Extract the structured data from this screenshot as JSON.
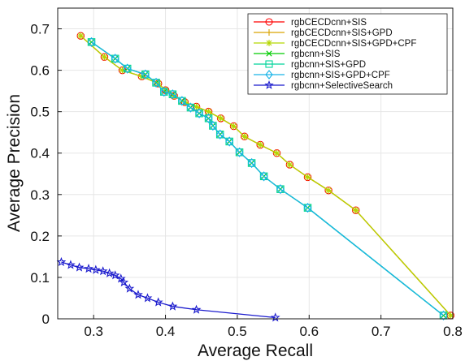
{
  "chart_data": {
    "type": "line",
    "xlabel": "Average Recall",
    "ylabel": "Average Precision",
    "xlim": [
      0.25,
      0.8
    ],
    "ylim": [
      0,
      0.75
    ],
    "x_ticks": [
      "0.3",
      "0.4",
      "0.5",
      "0.6",
      "0.7",
      "0.8"
    ],
    "y_ticks": [
      "0",
      "0.1",
      "0.2",
      "0.3",
      "0.4",
      "0.5",
      "0.6",
      "0.7"
    ],
    "grid": true,
    "legend_position": "top-right",
    "series": [
      {
        "name": "rgbCECDcnn+SIS",
        "color": "#ff0000",
        "marker": "circle",
        "points": [
          [
            0.282,
            0.683
          ],
          [
            0.315,
            0.632
          ],
          [
            0.34,
            0.6
          ],
          [
            0.367,
            0.585
          ],
          [
            0.39,
            0.568
          ],
          [
            0.4,
            0.552
          ],
          [
            0.412,
            0.538
          ],
          [
            0.427,
            0.523
          ],
          [
            0.443,
            0.512
          ],
          [
            0.46,
            0.5
          ],
          [
            0.477,
            0.484
          ],
          [
            0.495,
            0.465
          ],
          [
            0.51,
            0.44
          ],
          [
            0.532,
            0.42
          ],
          [
            0.555,
            0.4
          ],
          [
            0.573,
            0.372
          ],
          [
            0.598,
            0.342
          ],
          [
            0.627,
            0.31
          ],
          [
            0.665,
            0.262
          ],
          [
            0.797,
            0.008
          ]
        ]
      },
      {
        "name": "rgbCECDcnn+SIS+GPD",
        "color": "#d9a300",
        "marker": "plus",
        "points": [
          [
            0.282,
            0.683
          ],
          [
            0.315,
            0.632
          ],
          [
            0.34,
            0.6
          ],
          [
            0.367,
            0.585
          ],
          [
            0.39,
            0.568
          ],
          [
            0.4,
            0.552
          ],
          [
            0.412,
            0.538
          ],
          [
            0.427,
            0.523
          ],
          [
            0.443,
            0.512
          ],
          [
            0.46,
            0.5
          ],
          [
            0.477,
            0.484
          ],
          [
            0.495,
            0.465
          ],
          [
            0.51,
            0.44
          ],
          [
            0.532,
            0.42
          ],
          [
            0.555,
            0.4
          ],
          [
            0.573,
            0.372
          ],
          [
            0.598,
            0.342
          ],
          [
            0.627,
            0.31
          ],
          [
            0.665,
            0.262
          ],
          [
            0.797,
            0.008
          ]
        ]
      },
      {
        "name": "rgbCECDcnn+SIS+GPD+CPF",
        "color": "#b5d600",
        "marker": "asterisk",
        "points": [
          [
            0.282,
            0.683
          ],
          [
            0.315,
            0.632
          ],
          [
            0.34,
            0.6
          ],
          [
            0.367,
            0.585
          ],
          [
            0.39,
            0.568
          ],
          [
            0.4,
            0.552
          ],
          [
            0.412,
            0.538
          ],
          [
            0.427,
            0.523
          ],
          [
            0.443,
            0.512
          ],
          [
            0.46,
            0.5
          ],
          [
            0.477,
            0.484
          ],
          [
            0.495,
            0.465
          ],
          [
            0.51,
            0.44
          ],
          [
            0.532,
            0.42
          ],
          [
            0.555,
            0.4
          ],
          [
            0.573,
            0.372
          ],
          [
            0.598,
            0.342
          ],
          [
            0.627,
            0.31
          ],
          [
            0.665,
            0.262
          ],
          [
            0.797,
            0.008
          ]
        ]
      },
      {
        "name": "rgbcnn+SIS",
        "color": "#00cc00",
        "marker": "x",
        "points": [
          [
            0.297,
            0.668
          ],
          [
            0.33,
            0.628
          ],
          [
            0.347,
            0.604
          ],
          [
            0.372,
            0.59
          ],
          [
            0.387,
            0.57
          ],
          [
            0.398,
            0.548
          ],
          [
            0.41,
            0.542
          ],
          [
            0.423,
            0.526
          ],
          [
            0.435,
            0.51
          ],
          [
            0.447,
            0.496
          ],
          [
            0.46,
            0.484
          ],
          [
            0.466,
            0.466
          ],
          [
            0.476,
            0.445
          ],
          [
            0.489,
            0.428
          ],
          [
            0.503,
            0.402
          ],
          [
            0.52,
            0.376
          ],
          [
            0.537,
            0.344
          ],
          [
            0.56,
            0.313
          ],
          [
            0.598,
            0.268
          ],
          [
            0.787,
            0.008
          ]
        ]
      },
      {
        "name": "rgbcnn+SIS+GPD",
        "color": "#00d49a",
        "marker": "square",
        "points": [
          [
            0.297,
            0.668
          ],
          [
            0.33,
            0.628
          ],
          [
            0.347,
            0.604
          ],
          [
            0.372,
            0.59
          ],
          [
            0.387,
            0.57
          ],
          [
            0.398,
            0.548
          ],
          [
            0.41,
            0.542
          ],
          [
            0.423,
            0.526
          ],
          [
            0.435,
            0.51
          ],
          [
            0.447,
            0.496
          ],
          [
            0.46,
            0.484
          ],
          [
            0.466,
            0.466
          ],
          [
            0.476,
            0.445
          ],
          [
            0.489,
            0.428
          ],
          [
            0.503,
            0.402
          ],
          [
            0.52,
            0.376
          ],
          [
            0.537,
            0.344
          ],
          [
            0.56,
            0.313
          ],
          [
            0.598,
            0.268
          ],
          [
            0.787,
            0.008
          ]
        ]
      },
      {
        "name": "rgbcnn+SIS+GPD+CPF",
        "color": "#19b4e8",
        "marker": "diamond",
        "points": [
          [
            0.297,
            0.668
          ],
          [
            0.33,
            0.628
          ],
          [
            0.347,
            0.604
          ],
          [
            0.372,
            0.59
          ],
          [
            0.387,
            0.57
          ],
          [
            0.398,
            0.548
          ],
          [
            0.41,
            0.542
          ],
          [
            0.423,
            0.526
          ],
          [
            0.435,
            0.51
          ],
          [
            0.447,
            0.496
          ],
          [
            0.46,
            0.484
          ],
          [
            0.466,
            0.466
          ],
          [
            0.476,
            0.445
          ],
          [
            0.489,
            0.428
          ],
          [
            0.503,
            0.402
          ],
          [
            0.52,
            0.376
          ],
          [
            0.537,
            0.344
          ],
          [
            0.56,
            0.313
          ],
          [
            0.598,
            0.268
          ],
          [
            0.787,
            0.008
          ]
        ]
      },
      {
        "name": "rgbcnn+SelectiveSearch",
        "color": "#1a1acd",
        "marker": "star",
        "points": [
          [
            0.255,
            0.137
          ],
          [
            0.268,
            0.13
          ],
          [
            0.28,
            0.124
          ],
          [
            0.293,
            0.121
          ],
          [
            0.303,
            0.118
          ],
          [
            0.313,
            0.115
          ],
          [
            0.322,
            0.11
          ],
          [
            0.33,
            0.105
          ],
          [
            0.338,
            0.097
          ],
          [
            0.342,
            0.088
          ],
          [
            0.35,
            0.073
          ],
          [
            0.362,
            0.058
          ],
          [
            0.375,
            0.05
          ],
          [
            0.39,
            0.04
          ],
          [
            0.41,
            0.03
          ],
          [
            0.443,
            0.022
          ],
          [
            0.553,
            0.003
          ]
        ]
      }
    ]
  }
}
